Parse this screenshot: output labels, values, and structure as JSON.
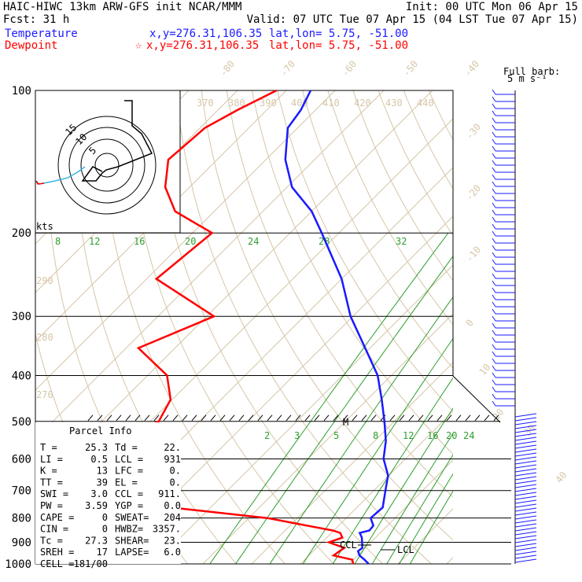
{
  "header": {
    "title": "HAIC-HIWC 13km ARW-GFS init   NCAR/MMM",
    "init": "Init: 00 UTC Mon 06 Apr 15",
    "fcst": "Fcst:   31 h",
    "valid": "Valid: 07 UTC Tue 07 Apr 15 (04 LST Tue 07 Apr 15)"
  },
  "legend": {
    "temp_label": "Temperature",
    "temp_pos": "x,y=276.31,106.35",
    "temp_latlon": "lat,lon=  5.75, -51.00",
    "dew_label": "Dewpoint",
    "dew_marker": "☆",
    "dew_pos": "x,y=276.31,106.35",
    "dew_latlon": "lat,lon=  5.75, -51.00"
  },
  "colors": {
    "temperature": "#1a1aff",
    "dewpoint": "#ff0000",
    "isotherm": "#d6c6a8",
    "mixing_ratio": "#2e9e2e"
  },
  "barb": {
    "title": "Full barb:",
    "unit": "5 m s⁻¹"
  },
  "hodograph": {
    "unit": "kts",
    "rings": [
      "5",
      "10",
      "15"
    ]
  },
  "parcel": {
    "title": "Parcel Info",
    "rows": [
      [
        "T  =",
        "25.3",
        "Td =",
        "22."
      ],
      [
        "LI =",
        "0.5",
        "LCL =",
        "931"
      ],
      [
        "K  =",
        "13",
        "LFC =",
        "0."
      ],
      [
        "TT =",
        "39",
        "EL  =",
        "0."
      ],
      [
        "SWI =",
        "3.0",
        "CCL =",
        "911."
      ],
      [
        "PW =",
        "3.59",
        "YGP =",
        "0.0"
      ],
      [
        "CAPE =",
        "0",
        "SWEAT=",
        "204"
      ],
      [
        "CIN =",
        "0",
        "HWBZ=",
        "3357."
      ],
      [
        "Tc =",
        "27.3",
        "SHEAR=",
        "23."
      ],
      [
        "SREH =",
        "17",
        "LAPSE=",
        "6.0"
      ],
      [
        "CELL =",
        "181/00",
        "",
        ""
      ]
    ]
  },
  "annotations": {
    "ccl": "CCL",
    "lcl": "LCL",
    "m": "M"
  },
  "chart_data": {
    "type": "line",
    "title": "",
    "xlabel": "",
    "ylabel": "",
    "pressure_levels": [
      100,
      200,
      300,
      400,
      500,
      600,
      700,
      800,
      900,
      1000
    ],
    "pressure_labels": [
      "100",
      "200",
      "300",
      "400",
      "500",
      "600",
      "700",
      "800",
      "900",
      "1000"
    ],
    "skewed_isotherm_labels": [
      "-80",
      "-70",
      "-60",
      "-50",
      "-40",
      "-30",
      "-20",
      "-10",
      "0",
      "10",
      "20",
      "30",
      "40"
    ],
    "theta_labels": [
      "370",
      "380",
      "390",
      "400",
      "410",
      "420",
      "430",
      "440"
    ],
    "theta_side_labels": [
      "290",
      "280",
      "270"
    ],
    "mixing_ratio_labels_upper": [
      "8",
      "12",
      "16",
      "20",
      "24",
      "28",
      "32"
    ],
    "mixing_ratio_labels_lower": [
      "2",
      "3",
      "5",
      "8",
      "12",
      "16",
      "20",
      "24"
    ],
    "series": [
      {
        "name": "Temperature",
        "p": [
          1000,
          980,
          960,
          940,
          925,
          900,
          880,
          860,
          850,
          830,
          800,
          760,
          700,
          650,
          600,
          550,
          500,
          450,
          400,
          350,
          300,
          250,
          200,
          180,
          160,
          140,
          120,
          110,
          100
        ],
        "t": [
          24,
          22.3,
          20.4,
          19.2,
          19.4,
          18.2,
          17.2,
          15.8,
          17.3,
          17.1,
          15.0,
          15.3,
          12.4,
          9.8,
          5.5,
          2.3,
          -2.0,
          -7.0,
          -12.8,
          -21.0,
          -30.5,
          -40.0,
          -53.5,
          -60.0,
          -69.0,
          -76.0,
          -82.0,
          -83.0,
          -85.0
        ]
      },
      {
        "name": "Dewpoint",
        "p": [
          1000,
          980,
          960,
          940,
          925,
          900,
          880,
          860,
          850,
          830,
          800,
          760,
          700,
          650,
          600,
          550,
          500,
          450,
          400,
          350,
          300,
          250,
          200,
          180,
          160,
          140,
          120,
          110,
          100
        ],
        "t": [
          20.8,
          19.8,
          15.1,
          15.4,
          15.7,
          11.4,
          13.2,
          11.8,
          9.8,
          3.5,
          -6.2,
          -28.2,
          -30.2,
          -45.3,
          -54.3,
          -53.6,
          -48.3,
          -50.3,
          -56.0,
          -67.5,
          -58.5,
          -78.0,
          -76.0,
          -88.0,
          -95.0,
          -100.0,
          -99.0,
          -96.0,
          -92.0
        ]
      }
    ]
  }
}
